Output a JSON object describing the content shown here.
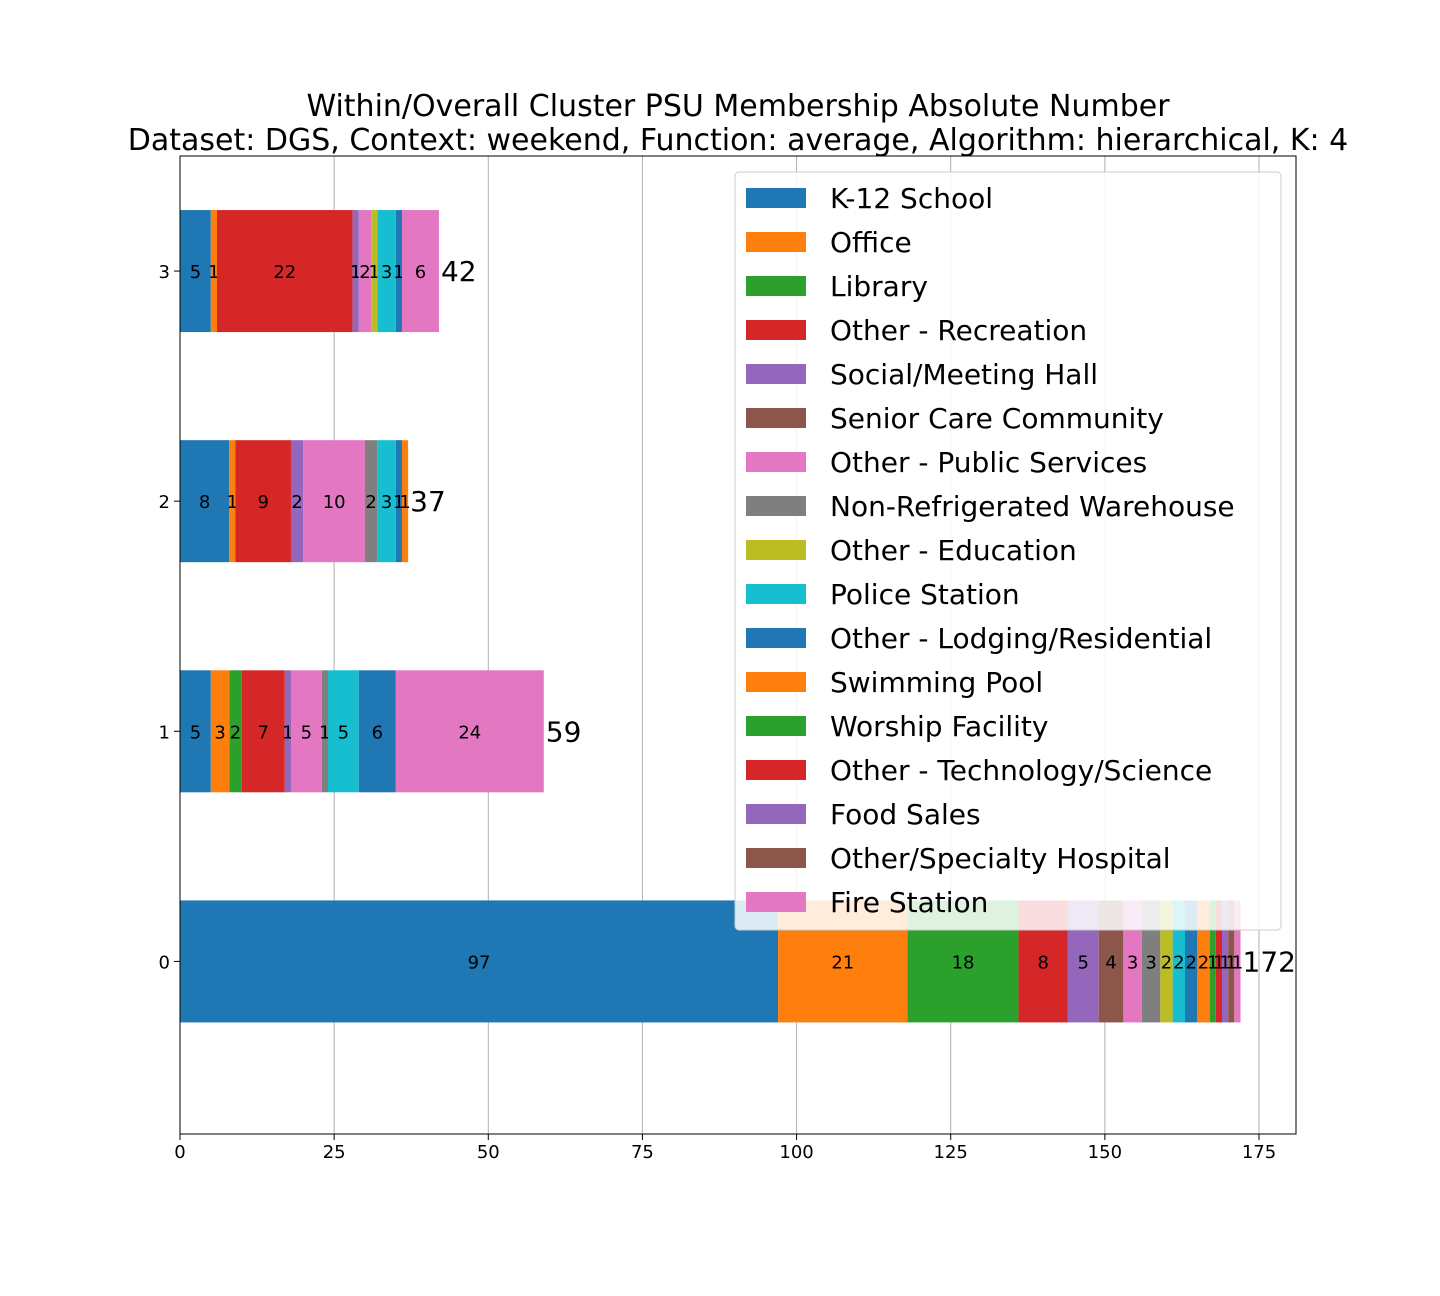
{
  "chart_data": {
    "type": "bar",
    "orientation": "horizontal",
    "stacked": true,
    "title": "Within/Overall Cluster PSU Membership Absolute Number",
    "subtitle": "Dataset: DGS, Context: weekend, Function: average, Algorithm: hierarchical, K: 4",
    "xlabel": "",
    "ylabel": "",
    "xlim": [
      0,
      181
    ],
    "xticks": [
      "0",
      "25",
      "50",
      "75",
      "100",
      "125",
      "150",
      "175"
    ],
    "grid": "vertical",
    "legend_position": "top-right",
    "categories": [
      "0",
      "1",
      "2",
      "3"
    ],
    "totals": [
      "172",
      "59",
      "37",
      "42"
    ],
    "series": [
      {
        "name": "K-12 School",
        "color": "#1f77b4",
        "values": [
          97,
          5,
          8,
          5
        ]
      },
      {
        "name": "Office",
        "color": "#ff7f0e",
        "values": [
          21,
          3,
          1,
          1
        ]
      },
      {
        "name": "Library",
        "color": "#2ca02c",
        "values": [
          18,
          2,
          0,
          0
        ]
      },
      {
        "name": "Other - Recreation",
        "color": "#d62728",
        "values": [
          8,
          7,
          9,
          22
        ]
      },
      {
        "name": "Social/Meeting Hall",
        "color": "#9467bd",
        "values": [
          5,
          1,
          2,
          1
        ]
      },
      {
        "name": "Senior Care Community",
        "color": "#8c564b",
        "values": [
          4,
          0,
          0,
          0
        ]
      },
      {
        "name": "Other - Public Services",
        "color": "#e377c2",
        "values": [
          3,
          5,
          10,
          2
        ]
      },
      {
        "name": "Non-Refrigerated Warehouse",
        "color": "#7f7f7f",
        "values": [
          3,
          1,
          2,
          0
        ]
      },
      {
        "name": "Other - Education",
        "color": "#bcbd22",
        "values": [
          2,
          0,
          0,
          1
        ]
      },
      {
        "name": "Police Station",
        "color": "#17becf",
        "values": [
          2,
          5,
          3,
          3
        ]
      },
      {
        "name": "Other - Lodging/Residential",
        "color": "#1f77b4",
        "values": [
          2,
          6,
          1,
          1
        ]
      },
      {
        "name": "Swimming Pool",
        "color": "#ff7f0e",
        "values": [
          2,
          0,
          1,
          0
        ]
      },
      {
        "name": "Worship Facility",
        "color": "#2ca02c",
        "values": [
          1,
          0,
          0,
          0
        ]
      },
      {
        "name": "Other - Technology/Science",
        "color": "#d62728",
        "values": [
          1,
          0,
          0,
          0
        ]
      },
      {
        "name": "Food Sales",
        "color": "#9467bd",
        "values": [
          1,
          0,
          0,
          0
        ]
      },
      {
        "name": "Other/Specialty Hospital",
        "color": "#8c564b",
        "values": [
          1,
          0,
          0,
          0
        ]
      },
      {
        "name": "Fire Station",
        "color": "#e377c2",
        "values": [
          1,
          24,
          0,
          6
        ]
      }
    ]
  }
}
